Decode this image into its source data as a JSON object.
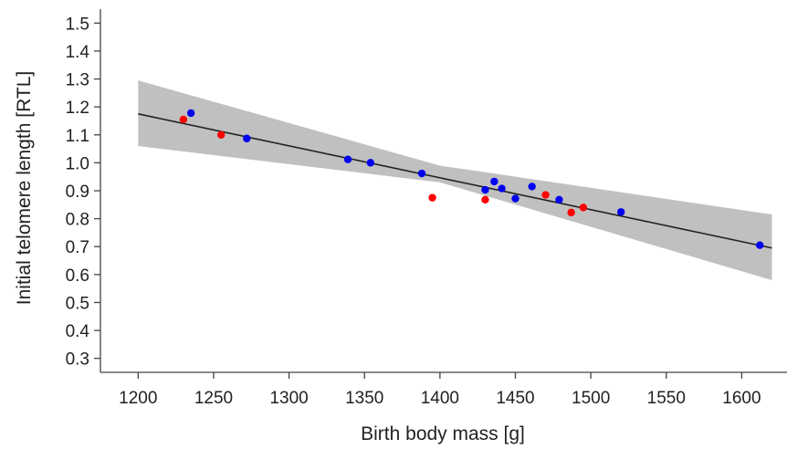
{
  "chart_data": {
    "type": "scatter",
    "title": "",
    "xlabel": "Birth body mass [g]",
    "ylabel": "Initial telomere length [RTL]",
    "xlim": [
      1175,
      1630
    ],
    "ylim": [
      0.25,
      1.55
    ],
    "xticks": [
      1200,
      1250,
      1300,
      1350,
      1400,
      1450,
      1500,
      1550,
      1600
    ],
    "yticks": [
      0.3,
      0.4,
      0.5,
      0.6,
      0.7,
      0.8,
      0.9,
      1.0,
      1.1,
      1.2,
      1.3,
      1.4,
      1.5
    ],
    "xtick_labels": [
      "1200",
      "1250",
      "1300",
      "1350",
      "1400",
      "1450",
      "1500",
      "1550",
      "1600"
    ],
    "ytick_labels": [
      "0.3",
      "0.4",
      "0.5",
      "0.6",
      "0.7",
      "0.8",
      "0.9",
      "1.0",
      "1.1",
      "1.2",
      "1.3",
      "1.4",
      "1.5"
    ],
    "grid": false,
    "legend": "none",
    "series": [
      {
        "color": "#ff0000",
        "points": [
          [
            1230,
            1.155
          ],
          [
            1255,
            1.1
          ],
          [
            1395,
            0.875
          ],
          [
            1430,
            0.868
          ],
          [
            1470,
            0.885
          ],
          [
            1487,
            0.822
          ],
          [
            1495,
            0.84
          ]
        ]
      },
      {
        "color": "#0000ee",
        "points": [
          [
            1235,
            1.178
          ],
          [
            1272,
            1.087
          ],
          [
            1339,
            1.012
          ],
          [
            1354,
            1.0
          ],
          [
            1388,
            0.962
          ],
          [
            1430,
            0.903
          ],
          [
            1436,
            0.933
          ],
          [
            1441,
            0.908
          ],
          [
            1450,
            0.872
          ],
          [
            1461,
            0.915
          ],
          [
            1479,
            0.868
          ],
          [
            1520,
            0.824
          ],
          [
            1612,
            0.705
          ]
        ]
      }
    ],
    "regression": {
      "x": [
        1200,
        1620
      ],
      "y": [
        1.175,
        0.695
      ],
      "color": "#222222"
    },
    "confidence_band": {
      "x": [
        1200,
        1400,
        1620
      ],
      "upper": [
        1.295,
        0.99,
        0.815
      ],
      "lower": [
        1.06,
        0.93,
        0.58
      ],
      "color": "#c0c0c0"
    }
  }
}
